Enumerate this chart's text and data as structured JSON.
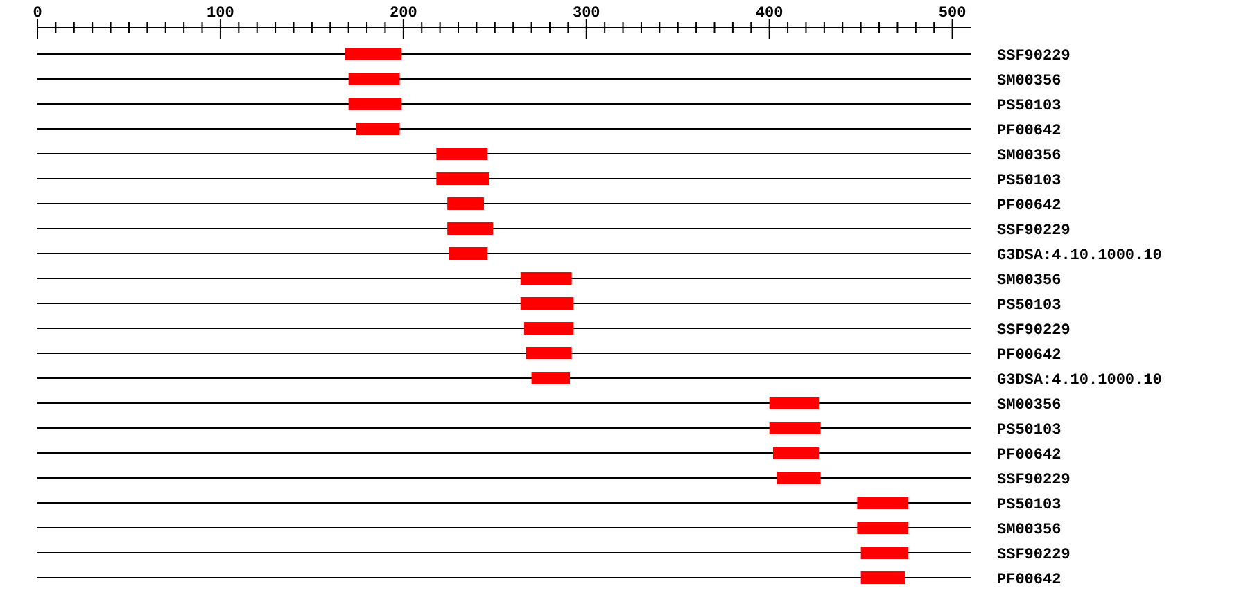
{
  "chart_data": {
    "type": "bar",
    "orientation": "horizontal",
    "grid": "y",
    "color": "#ff0000",
    "categories": [
      "SSF90229",
      "SM00356",
      "PS50103",
      "PF00642",
      "SM00356",
      "PS50103",
      "PF00642",
      "SSF90229",
      "G3DSA:4.10.1000.10",
      "SM00356",
      "PS50103",
      "SSF90229",
      "PF00642",
      "G3DSA:4.10.1000.10",
      "SM00356",
      "PS50103",
      "PF00642",
      "SSF90229",
      "PS50103",
      "SM00356",
      "SSF90229",
      "PF00642"
    ],
    "base": [
      168,
      170,
      170,
      174,
      218,
      218,
      224,
      224,
      225,
      264,
      264,
      266,
      267,
      270,
      400,
      400,
      402,
      404,
      448,
      448,
      450,
      450
    ],
    "values": [
      31,
      28,
      29,
      24,
      28,
      29,
      20,
      25,
      21,
      28,
      29,
      27,
      25,
      21,
      27,
      28,
      25,
      24,
      28,
      28,
      26,
      24
    ],
    "xlim": [
      0,
      510
    ],
    "xticks": [
      0,
      {
        "value": 10,
        "label": null
      },
      {
        "value": 20,
        "label": null
      },
      {
        "value": 30,
        "label": null
      },
      {
        "value": 40,
        "label": null
      },
      {
        "value": 50,
        "label": null
      },
      {
        "value": 60,
        "label": null
      },
      {
        "value": 70,
        "label": null
      },
      {
        "value": 80,
        "label": null
      },
      {
        "value": 90,
        "label": null
      },
      100,
      {
        "value": 110,
        "label": null
      },
      {
        "value": 120,
        "label": null
      },
      {
        "value": 130,
        "label": null
      },
      {
        "value": 140,
        "label": null
      },
      {
        "value": 150,
        "label": null
      },
      {
        "value": 160,
        "label": null
      },
      {
        "value": 170,
        "label": null
      },
      {
        "value": 180,
        "label": null
      },
      {
        "value": 190,
        "label": null
      },
      200,
      {
        "value": 210,
        "label": null
      },
      {
        "value": 220,
        "label": null
      },
      {
        "value": 230,
        "label": null
      },
      {
        "value": 240,
        "label": null
      },
      {
        "value": 250,
        "label": null
      },
      {
        "value": 260,
        "label": null
      },
      {
        "value": 270,
        "label": null
      },
      {
        "value": 280,
        "label": null
      },
      {
        "value": 290,
        "label": null
      },
      300,
      {
        "value": 310,
        "label": null
      },
      {
        "value": 320,
        "label": null
      },
      {
        "value": 330,
        "label": null
      },
      {
        "value": 340,
        "label": null
      },
      {
        "value": 350,
        "label": null
      },
      {
        "value": 360,
        "label": null
      },
      {
        "value": 370,
        "label": null
      },
      {
        "value": 380,
        "label": null
      },
      {
        "value": 390,
        "label": null
      },
      400,
      {
        "value": 410,
        "label": null
      },
      {
        "value": 420,
        "label": null
      },
      {
        "value": 430,
        "label": null
      },
      {
        "value": 440,
        "label": null
      },
      {
        "value": 450,
        "label": null
      },
      {
        "value": 460,
        "label": null
      },
      {
        "value": 470,
        "label": null
      },
      {
        "value": 480,
        "label": null
      },
      {
        "value": 490,
        "label": null
      },
      500
    ]
  }
}
